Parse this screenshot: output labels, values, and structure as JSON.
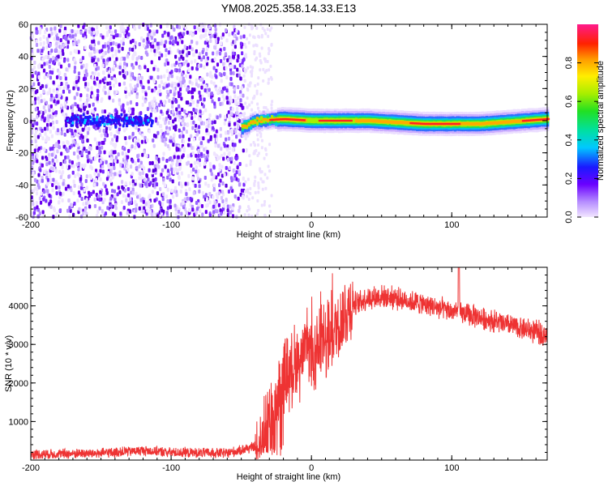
{
  "chart_data": [
    {
      "type": "heatmap",
      "title": "YM08.2025.358.14.33.E13",
      "xlabel": "Height of straight line (km)",
      "ylabel": "Frequency (Hz)",
      "xlim": [
        -200,
        168
      ],
      "ylim": [
        -60,
        60
      ],
      "x_ticks": [
        "-200",
        "-100",
        "0",
        "100"
      ],
      "y_ticks": [
        "-60",
        "-40",
        "-20",
        "0",
        "20",
        "40",
        "60"
      ],
      "colorbar": {
        "label": "Normalized spectral amplitude",
        "range": [
          0.0,
          1.0
        ],
        "ticks": [
          "0.0",
          "0.2",
          "0.4",
          "0.6",
          "0.8"
        ]
      },
      "features": {
        "noise_region_x": [
          -200,
          -48
        ],
        "central_band_center_hz": [
          {
            "x": -50,
            "hz": -4
          },
          {
            "x": -40,
            "hz": 0
          },
          {
            "x": -20,
            "hz": 1
          },
          {
            "x": 0,
            "hz": 0
          },
          {
            "x": 40,
            "hz": 0
          },
          {
            "x": 80,
            "hz": -2
          },
          {
            "x": 100,
            "hz": -2
          },
          {
            "x": 120,
            "hz": -2
          },
          {
            "x": 168,
            "hz": 1
          }
        ]
      }
    },
    {
      "type": "line",
      "xlabel": "Height of straight line (km)",
      "ylabel": "SNR (10 * v/v)",
      "xlim": [
        -200,
        168
      ],
      "ylim": [
        0,
        5000
      ],
      "x_ticks": [
        "-200",
        "-100",
        "0",
        "100"
      ],
      "y_ticks": [
        "1000",
        "2000",
        "3000",
        "4000"
      ],
      "series": [
        {
          "color": "#ee3333",
          "x": [
            -200,
            -150,
            -120,
            -100,
            -60,
            -40,
            -35,
            -30,
            -20,
            -10,
            0,
            10,
            20,
            30,
            40,
            50,
            60,
            80,
            100,
            120,
            140,
            168
          ],
          "y": [
            150,
            180,
            250,
            200,
            180,
            350,
            900,
            1300,
            2100,
            2600,
            2700,
            3000,
            3600,
            4050,
            4200,
            4250,
            4200,
            4050,
            3850,
            3700,
            3500,
            3250
          ]
        }
      ]
    }
  ]
}
